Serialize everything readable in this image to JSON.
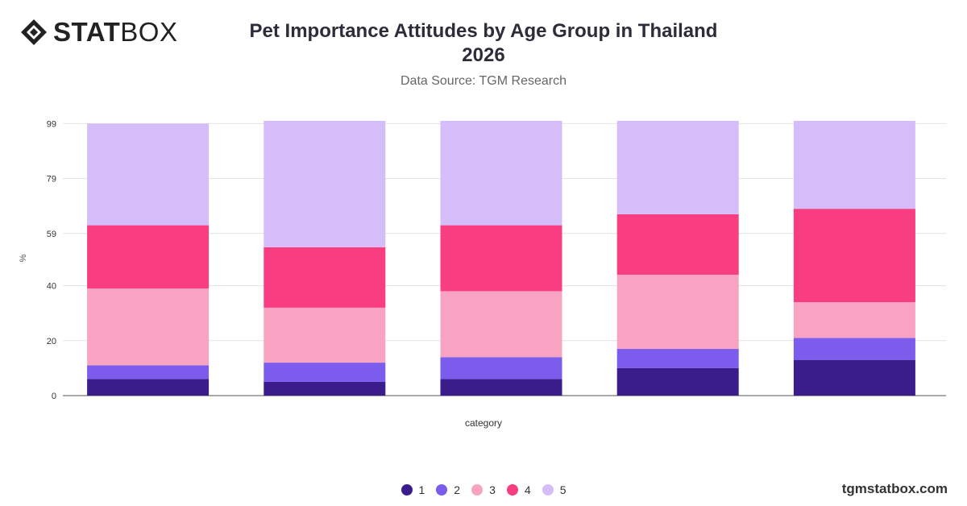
{
  "header": {
    "logo_bold": "STAT",
    "logo_light": "BOX",
    "title_line1": "Pet Importance Attitudes by Age Group in Thailand",
    "title_line2": "2026",
    "subtitle": "Data Source: TGM Research"
  },
  "footer": {
    "brand": "tgmstatbox.com"
  },
  "chart_data": {
    "type": "bar",
    "stacked": true,
    "title": "Pet Importance Attitudes by Age Group in Thailand 2026",
    "subtitle": "Data Source: TGM Research",
    "xlabel": "category",
    "ylabel": "%",
    "ylim": [
      0,
      100
    ],
    "yticks": [
      0,
      20,
      40,
      59,
      79,
      99
    ],
    "grid": true,
    "legend_position": "bottom",
    "categories": [
      "",
      "",
      "",
      "",
      ""
    ],
    "series": [
      {
        "name": "1",
        "color": "#3a1d8a",
        "values": [
          6,
          5,
          6,
          10,
          13
        ]
      },
      {
        "name": "2",
        "color": "#7b5ced",
        "values": [
          5,
          7,
          8,
          7,
          8
        ]
      },
      {
        "name": "3",
        "color": "#f9a3c3",
        "values": [
          28,
          20,
          24,
          27,
          13
        ]
      },
      {
        "name": "4",
        "color": "#f83e80",
        "values": [
          23,
          22,
          24,
          22,
          34
        ]
      },
      {
        "name": "5",
        "color": "#d5bdfa",
        "values": [
          37,
          46,
          38,
          35,
          33
        ]
      }
    ]
  }
}
